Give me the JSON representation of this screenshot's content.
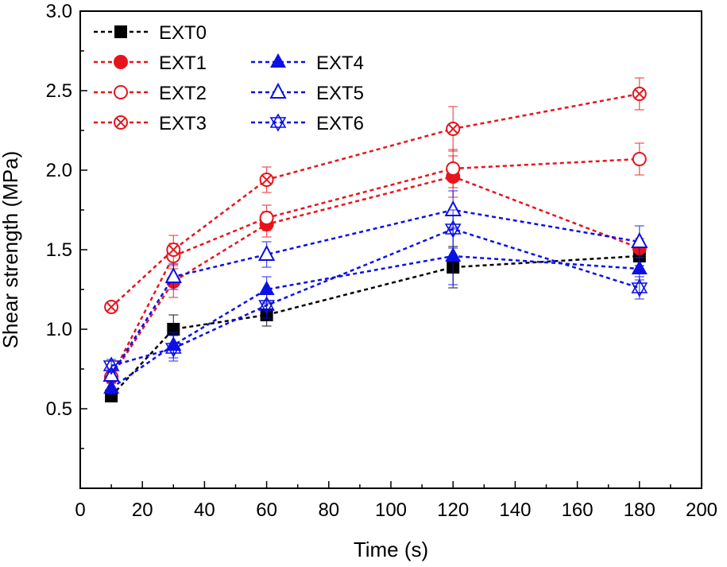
{
  "chart_data": {
    "type": "line",
    "xlabel": "Time (s)",
    "ylabel": "Shear strength (MPa)",
    "xlim": [
      0,
      200
    ],
    "ylim": [
      0.0,
      3.0
    ],
    "x_ticks": [
      "0",
      "20",
      "40",
      "60",
      "80",
      "100",
      "120",
      "140",
      "160",
      "180",
      "200"
    ],
    "y_ticks": [
      "0.5",
      "1.0",
      "1.5",
      "2.0",
      "2.5",
      "3.0"
    ],
    "grid": false,
    "legend_position": "top-left",
    "x": [
      10,
      30,
      60,
      120,
      180
    ],
    "series": [
      {
        "name": "EXT0",
        "color": "#000000",
        "marker": "filled-square",
        "values": [
          0.58,
          1.0,
          1.09,
          1.39,
          1.46
        ],
        "errors": [
          0.03,
          0.09,
          0.07,
          0.13,
          0.06
        ]
      },
      {
        "name": "EXT1",
        "color": "#e8141b",
        "marker": "filled-circle",
        "values": [
          0.7,
          1.3,
          1.66,
          1.96,
          1.51
        ],
        "errors": [
          0.04,
          0.1,
          0.08,
          0.13,
          0.06
        ]
      },
      {
        "name": "EXT2",
        "color": "#e8141b",
        "marker": "open-circle",
        "values": [
          0.7,
          1.46,
          1.7,
          2.01,
          2.07
        ],
        "errors": [
          0.04,
          0.08,
          0.08,
          0.12,
          0.1
        ]
      },
      {
        "name": "EXT3",
        "color": "#e8141b",
        "marker": "crossed-circle",
        "values": [
          1.14,
          1.5,
          1.94,
          2.26,
          2.48
        ],
        "errors": [
          0.03,
          0.09,
          0.08,
          0.14,
          0.1
        ]
      },
      {
        "name": "EXT4",
        "color": "#0b10e6",
        "marker": "filled-triangle",
        "values": [
          0.63,
          0.9,
          1.25,
          1.46,
          1.38
        ],
        "errors": [
          0.04,
          0.08,
          0.08,
          0.18,
          0.07
        ]
      },
      {
        "name": "EXT5",
        "color": "#0b10e6",
        "marker": "open-triangle",
        "values": [
          0.71,
          1.33,
          1.47,
          1.75,
          1.55
        ],
        "errors": [
          0.04,
          0.08,
          0.08,
          0.12,
          0.1
        ]
      },
      {
        "name": "EXT6",
        "color": "#0b10e6",
        "marker": "star-cross",
        "values": [
          0.77,
          0.88,
          1.15,
          1.63,
          1.26
        ],
        "errors": [
          0.04,
          0.08,
          0.08,
          0.12,
          0.07
        ]
      }
    ]
  }
}
